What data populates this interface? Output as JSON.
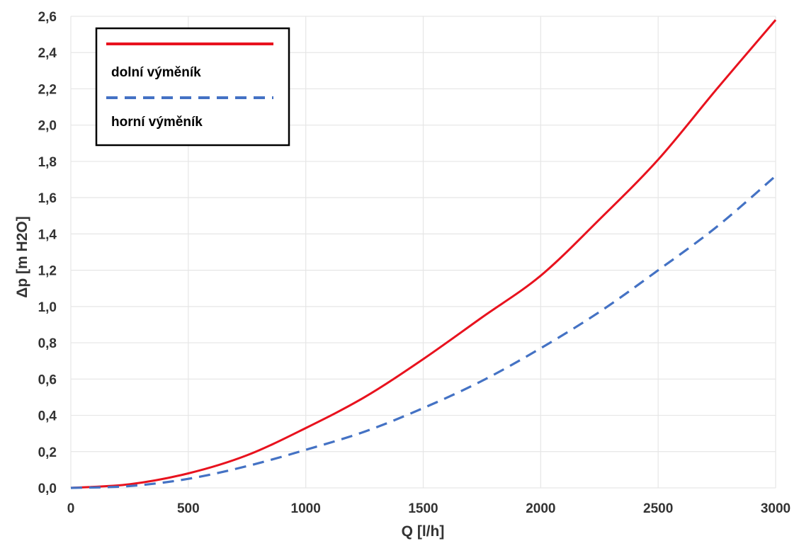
{
  "chart_data": {
    "type": "line",
    "title": "",
    "xlabel": "Q [l/h]",
    "ylabel": "Δp [m H2O]",
    "xlim": [
      0,
      3000
    ],
    "ylim": [
      0,
      2.6
    ],
    "xticks": [
      0,
      500,
      1000,
      1500,
      2000,
      2500,
      3000
    ],
    "xtick_labels": [
      "0",
      "500",
      "1000",
      "1500",
      "2000",
      "2500",
      "3000"
    ],
    "yticks": [
      0,
      0.2,
      0.4,
      0.6,
      0.8,
      1.0,
      1.2,
      1.4,
      1.6,
      1.8,
      2.0,
      2.2,
      2.4,
      2.6
    ],
    "ytick_labels": [
      "0,0",
      "0,2",
      "0,4",
      "0,6",
      "0,8",
      "1,0",
      "1,2",
      "1,4",
      "1,6",
      "1,8",
      "2,0",
      "2,2",
      "2,4",
      "2,6"
    ],
    "grid": true,
    "legend_position": "top-left",
    "series": [
      {
        "name": "dolní výměník",
        "color": "#e8121e",
        "style": "solid",
        "x": [
          0,
          250,
          500,
          750,
          1000,
          1250,
          1500,
          1750,
          2000,
          2250,
          2500,
          2750,
          3000
        ],
        "y": [
          0,
          0.02,
          0.08,
          0.18,
          0.33,
          0.5,
          0.71,
          0.94,
          1.17,
          1.48,
          1.81,
          2.2,
          2.58
        ]
      },
      {
        "name": "horní výměník",
        "color": "#4472c4",
        "style": "dashed",
        "x": [
          0,
          250,
          500,
          750,
          1000,
          1250,
          1500,
          1750,
          2000,
          2250,
          2500,
          2750,
          3000
        ],
        "y": [
          0,
          0.01,
          0.05,
          0.12,
          0.21,
          0.31,
          0.44,
          0.59,
          0.77,
          0.97,
          1.2,
          1.44,
          1.72
        ]
      }
    ]
  }
}
